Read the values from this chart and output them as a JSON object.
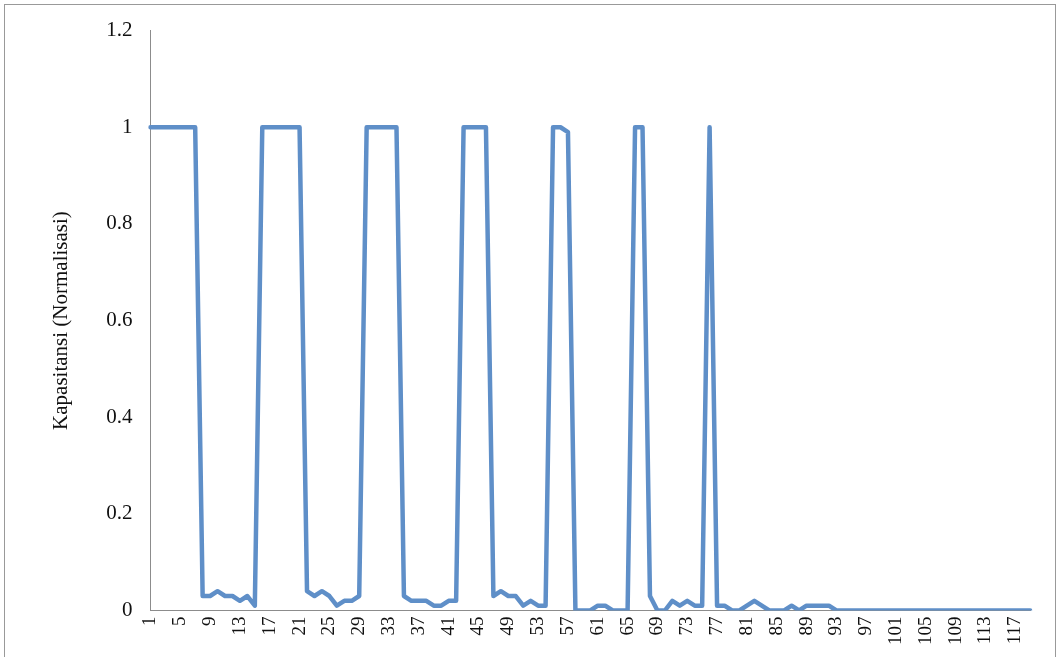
{
  "chart_data": {
    "type": "line",
    "ylabel": "Kapasitansi (Normalisasi)",
    "categories": [
      "1",
      null,
      null,
      null,
      "5",
      null,
      null,
      null,
      "9",
      null,
      null,
      null,
      "13",
      null,
      null,
      null,
      "17",
      null,
      null,
      null,
      "21",
      null,
      null,
      null,
      "25",
      null,
      null,
      null,
      "29",
      null,
      null,
      null,
      "33",
      null,
      null,
      null,
      "37",
      null,
      null,
      null,
      "41",
      null,
      null,
      null,
      "45",
      null,
      null,
      null,
      "49",
      null,
      null,
      null,
      "53",
      null,
      null,
      null,
      "57",
      null,
      null,
      null,
      "61",
      null,
      null,
      null,
      "65",
      null,
      null,
      null,
      "69",
      null,
      null,
      null,
      "73",
      null,
      null,
      null,
      "77",
      null,
      null,
      null,
      "81",
      null,
      null,
      null,
      "85",
      null,
      null,
      null,
      "89",
      null,
      null,
      null,
      "93",
      null,
      null,
      null,
      "97",
      null,
      null,
      null,
      "101",
      null,
      null,
      null,
      "105",
      null,
      null,
      null,
      "109",
      null,
      null,
      null,
      "113",
      null,
      null,
      null,
      "117",
      null,
      null
    ],
    "series": [
      {
        "color": "#5f8fc8",
        "values": [
          1,
          1,
          1,
          1,
          1,
          1,
          1,
          0.03,
          0.03,
          0.04,
          0.03,
          0.03,
          0.02,
          0.03,
          0.01,
          1,
          1,
          1,
          1,
          1,
          1,
          0.04,
          0.03,
          0.04,
          0.03,
          0.01,
          0.02,
          0.02,
          0.03,
          1,
          1,
          1,
          1,
          1,
          0.03,
          0.02,
          0.02,
          0.02,
          0.01,
          0.01,
          0.02,
          0.02,
          1,
          1,
          1,
          1,
          0.03,
          0.04,
          0.03,
          0.03,
          0.01,
          0.02,
          0.01,
          0.01,
          1,
          1,
          0.99,
          0,
          0,
          0,
          0.01,
          0.01,
          0,
          0,
          0,
          1,
          1,
          0.03,
          0,
          0,
          0.02,
          0.01,
          0.02,
          0.01,
          0.01,
          1,
          0.01,
          0.01,
          0,
          0,
          0.01,
          0.02,
          0.01,
          0,
          0,
          0,
          0.01,
          0,
          0.01,
          0.01,
          0.01,
          0.01,
          0,
          0,
          0,
          0,
          0,
          0,
          0,
          0,
          0,
          0,
          0,
          0,
          0,
          0,
          0,
          0,
          0,
          0,
          0,
          0,
          0,
          0,
          0,
          0,
          0,
          0,
          0
        ]
      }
    ],
    "ylim": [
      0,
      1.2
    ],
    "yticks": [
      0,
      0.2,
      0.4,
      0.6,
      0.8,
      1,
      1.2
    ],
    "grid": false,
    "legend": false,
    "marker": "none",
    "line_style": "solid"
  }
}
